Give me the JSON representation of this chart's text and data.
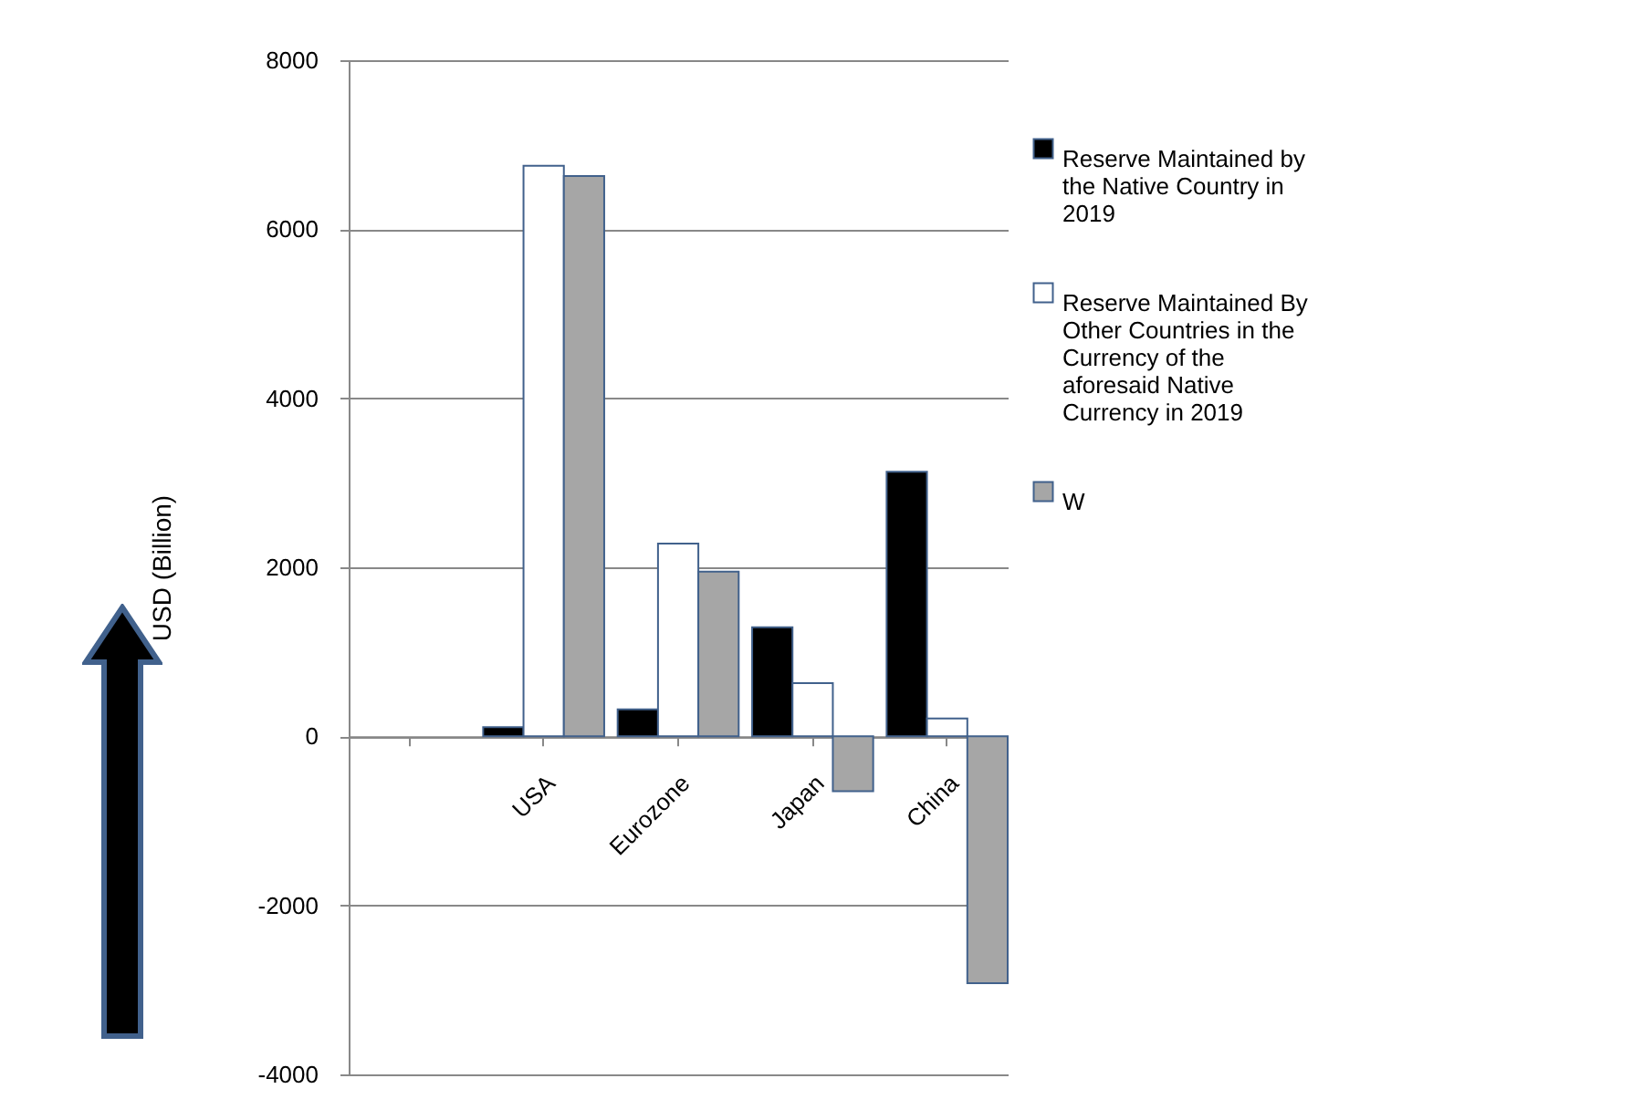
{
  "chart_data": {
    "type": "bar",
    "ylabel": "USD (Billion)",
    "categories": [
      null,
      "USA",
      "Eurozone",
      "Japan",
      "China"
    ],
    "series": [
      {
        "name": "Reserve Maintained by the Native Country in 2019",
        "color": "#000000",
        "values": [
          null,
          110,
          320,
          1290,
          3130
        ]
      },
      {
        "name": "Reserve Maintained By Other Countries in the Currency of the aforesaid Native Currency in 2019",
        "color": "#ffffff",
        "values": [
          null,
          6750,
          2280,
          630,
          210
        ]
      },
      {
        "name": "W",
        "color": "#a6a6a6",
        "values": [
          null,
          6630,
          1950,
          -650,
          -2920
        ]
      }
    ],
    "ylim": [
      -4000,
      8000
    ],
    "yticks": [
      -4000,
      -2000,
      0,
      2000,
      4000,
      6000,
      8000
    ],
    "grid": "y",
    "legend": "right"
  }
}
